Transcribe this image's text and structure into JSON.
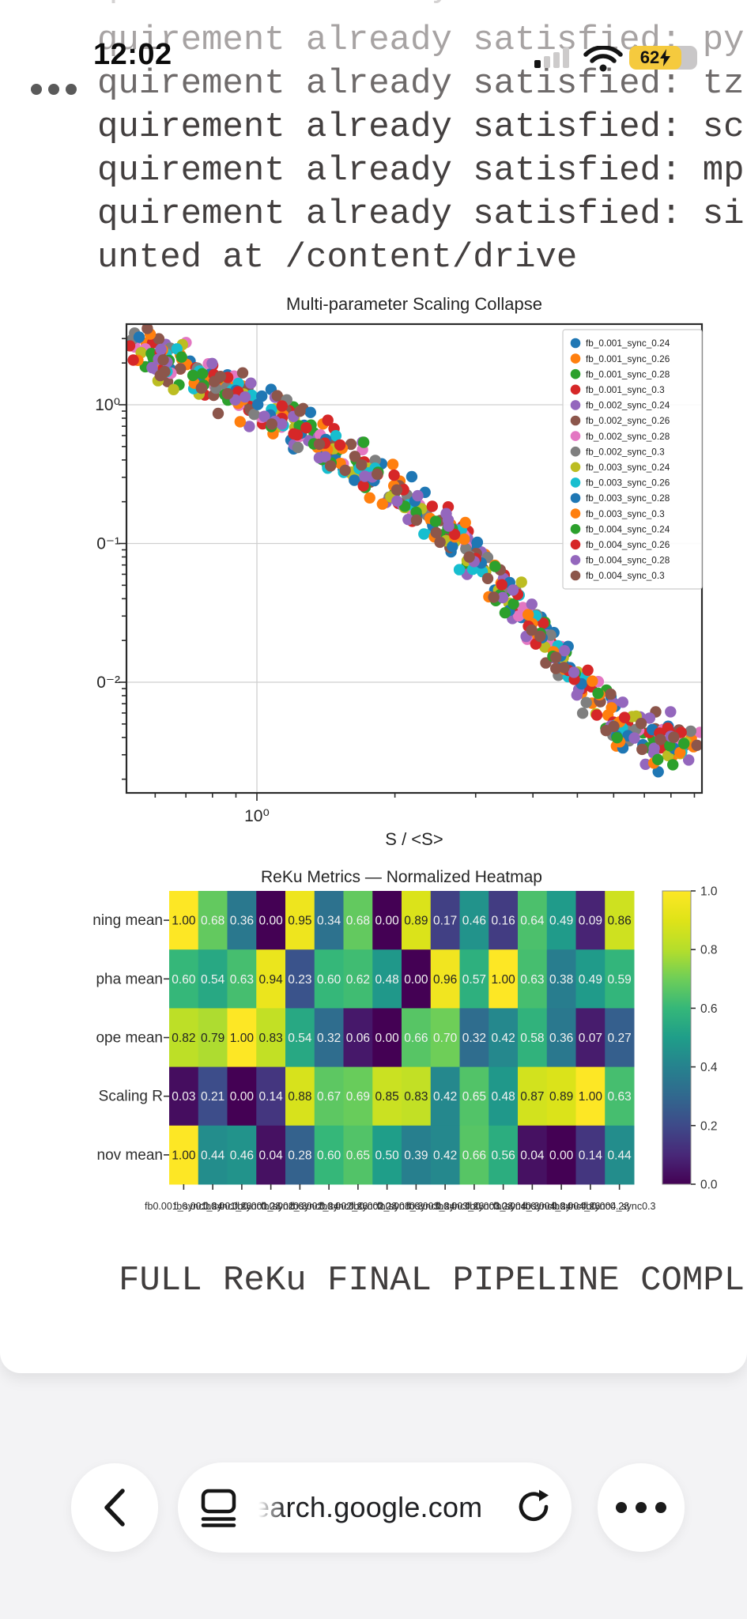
{
  "status_bar": {
    "time": "12:02",
    "battery_level": "62",
    "battery_charging": true,
    "cellular_bars_filled": 1,
    "cellular_bars_total": 4
  },
  "terminal": {
    "lines": [
      {
        "text": "quirement already satisfied: li",
        "color": "#d4d2d2"
      },
      {
        "text": "quirement already satisfied: py",
        "color": "#a7a3a3"
      },
      {
        "text": "quirement already satisfied: tz",
        "color": "#6e6a6a"
      },
      {
        "text": "quirement already satisfied: sc",
        "color": "#433f3f"
      },
      {
        "text": "quirement already satisfied: mp",
        "color": "#433f3f"
      },
      {
        "text": "quirement already satisfied: si",
        "color": "#433f3f"
      },
      {
        "text": "unted at /content/drive",
        "color": "#433f3f"
      }
    ],
    "completion_text": "FULL ReKu FINAL PIPELINE COMPL"
  },
  "chart_data": [
    {
      "type": "scatter",
      "title": "Multi-parameter Scaling Collapse",
      "xlabel": "S / <S>",
      "ylabel": "",
      "x_scale": "log",
      "y_scale": "log",
      "x_range": [
        0.52,
        9.3
      ],
      "y_range": [
        0.0016,
        3.8
      ],
      "x_tick_labels": [
        "10⁰"
      ],
      "y_tick_labels": [
        "10⁰",
        "0⁻¹",
        "0⁻²"
      ],
      "grid": true,
      "legend_position": "upper right",
      "series": [
        {
          "name": "fb_0.001_sync_0.24",
          "color": "#1f77b4"
        },
        {
          "name": "fb_0.001_sync_0.26",
          "color": "#ff7f0e"
        },
        {
          "name": "fb_0.001_sync_0.28",
          "color": "#2ca02c"
        },
        {
          "name": "fb_0.001_sync_0.3",
          "color": "#d62728"
        },
        {
          "name": "fb_0.002_sync_0.24",
          "color": "#9467bd"
        },
        {
          "name": "fb_0.002_sync_0.26",
          "color": "#8c564b"
        },
        {
          "name": "fb_0.002_sync_0.28",
          "color": "#e377c2"
        },
        {
          "name": "fb_0.002_sync_0.3",
          "color": "#7f7f7f"
        },
        {
          "name": "fb_0.003_sync_0.24",
          "color": "#bcbd22"
        },
        {
          "name": "fb_0.003_sync_0.26",
          "color": "#17becf"
        },
        {
          "name": "fb_0.003_sync_0.28",
          "color": "#1f77b4"
        },
        {
          "name": "fb_0.003_sync_0.3",
          "color": "#ff7f0e"
        },
        {
          "name": "fb_0.004_sync_0.24",
          "color": "#2ca02c"
        },
        {
          "name": "fb_0.004_sync_0.26",
          "color": "#d62728"
        },
        {
          "name": "fb_0.004_sync_0.28",
          "color": "#9467bd"
        },
        {
          "name": "fb_0.004_sync_0.3",
          "color": "#8c564b"
        }
      ],
      "collapse_curve_log10_anchors": [
        [
          -0.28,
          0.43
        ],
        [
          -0.15,
          0.27
        ],
        [
          0.0,
          0.0
        ],
        [
          0.15,
          -0.3
        ],
        [
          0.3,
          -0.62
        ],
        [
          0.45,
          -1.02
        ],
        [
          0.55,
          -1.38
        ],
        [
          0.65,
          -1.78
        ],
        [
          0.73,
          -2.1
        ],
        [
          0.79,
          -2.32
        ],
        [
          0.86,
          -2.42
        ],
        [
          0.96,
          -2.45
        ]
      ],
      "points_per_series": 36,
      "jitter_dex_y": 0.085,
      "jitter_dex_x": 0.05,
      "seed": 7
    },
    {
      "type": "heatmap",
      "title": "ReKu Metrics — Normalized Heatmap",
      "rows": [
        "ning mean",
        "pha mean",
        "ope mean",
        "Scaling R",
        "nov mean"
      ],
      "columns": [
        "fb0.001_sync0.24",
        "fb0.001_sync0.26",
        "fb0.001_sync0.28",
        "fb0.001_sync0.3",
        "fb0.002_sync0.24",
        "fb0.002_sync0.26",
        "fb0.002_sync0.28",
        "fb0.002_sync0.3",
        "fb0.003_sync0.24",
        "fb0.003_sync0.26",
        "fb0.003_sync0.28",
        "fb0.003_sync0.3",
        "fb0.004_sync0.24",
        "fb0.004_sync0.26",
        "fb0.004_sync0.28",
        "fb0.004_sync0.3"
      ],
      "values": [
        [
          1.0,
          0.68,
          0.36,
          0.0,
          0.95,
          0.34,
          0.68,
          0.0,
          0.89,
          0.17,
          0.46,
          0.16,
          0.64,
          0.49,
          0.09,
          0.86
        ],
        [
          0.6,
          0.54,
          0.63,
          0.94,
          0.23,
          0.6,
          0.62,
          0.48,
          0.0,
          0.96,
          0.57,
          1.0,
          0.63,
          0.38,
          0.49,
          0.59
        ],
        [
          0.82,
          0.79,
          1.0,
          0.83,
          0.54,
          0.32,
          0.06,
          0.0,
          0.66,
          0.7,
          0.32,
          0.42,
          0.58,
          0.36,
          0.07,
          0.27
        ],
        [
          0.03,
          0.21,
          0.0,
          0.14,
          0.88,
          0.67,
          0.69,
          0.85,
          0.83,
          0.42,
          0.65,
          0.48,
          0.87,
          0.89,
          1.0,
          0.63
        ],
        [
          1.0,
          0.44,
          0.46,
          0.04,
          0.28,
          0.6,
          0.65,
          0.5,
          0.39,
          0.42,
          0.66,
          0.56,
          0.04,
          0.0,
          0.14,
          0.44
        ]
      ],
      "colormap": "viridis",
      "vmin": 0.0,
      "vmax": 1.0,
      "colorbar_tick_labels": [
        "1.0",
        "0.8",
        "0.6",
        "0.4",
        "0.2",
        "0.0"
      ]
    }
  ],
  "toolbar": {
    "url": "earch.google.com"
  },
  "colors": {
    "terminal_dark": "#433f3f",
    "battery_yellow": "#f5ca3e",
    "toolbar_bg": "#f3f3f5"
  }
}
